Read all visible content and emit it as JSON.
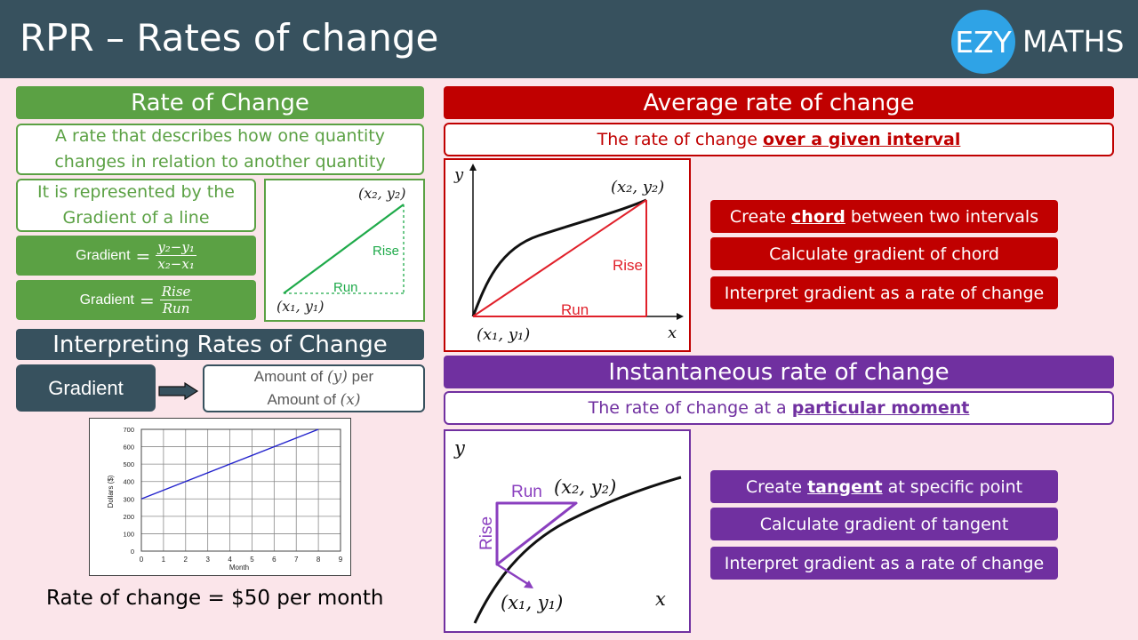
{
  "header": {
    "title": "RPR – Rates of change",
    "logo_left": "EZY",
    "logo_right": "MATHS"
  },
  "rate_of_change": {
    "heading": "Rate of Change",
    "definition_line1": "A rate that describes how one quantity",
    "definition_line2": "changes in relation to another quantity",
    "represented_line1": "It is represented by the",
    "represented_line2": "Gradient of a line",
    "formula_label": "Gradient",
    "formula1_num": "y₂−y₁",
    "formula1_den": "x₂−x₁",
    "formula2_num": "Rise",
    "formula2_den": "Run",
    "graph": {
      "p1": "(x₁, y₁)",
      "p2": "(x₂, y₂)",
      "rise": "Rise",
      "run": "Run"
    }
  },
  "interpreting": {
    "heading": "Interpreting Rates of Change",
    "gradient_label": "Gradient",
    "amount_line1_a": "Amount of ",
    "amount_line1_var": "(y)",
    "amount_line1_b": " per",
    "amount_line2_a": "Amount of ",
    "amount_line2_var": "(x)",
    "rate_label": "Rate of change",
    "rate_value": "$50 per month"
  },
  "chart_data": {
    "type": "line",
    "xlabel": "Month",
    "ylabel": "Dollars ($)",
    "xlim": [
      0,
      9
    ],
    "ylim": [
      0,
      700
    ],
    "x_ticks": [
      "0",
      "1",
      "2",
      "3",
      "4",
      "5",
      "6",
      "7",
      "8",
      "9"
    ],
    "y_ticks": [
      "0",
      "100",
      "200",
      "300",
      "400",
      "500",
      "600",
      "700"
    ],
    "grid": true,
    "series": [
      {
        "x": [
          0,
          8
        ],
        "y": [
          300,
          700
        ],
        "color": "#2222cc"
      }
    ]
  },
  "average": {
    "heading": "Average rate of change",
    "sub_a": "The rate of change ",
    "sub_b": "over a given interval",
    "graph": {
      "y_axis": "y",
      "x_axis": "x",
      "p1": "(x₁, y₁)",
      "p2": "(x₂, y₂)",
      "rise": "Rise",
      "run": "Run"
    },
    "steps": [
      {
        "a": "Create ",
        "b": "chord",
        "c": " between two intervals"
      },
      {
        "a": "Calculate gradient of chord",
        "b": "",
        "c": ""
      },
      {
        "a": "Interpret gradient as a rate of change",
        "b": "",
        "c": ""
      }
    ]
  },
  "instantaneous": {
    "heading": "Instantaneous rate of change",
    "sub_a": "The rate of change at a ",
    "sub_b": "particular moment",
    "graph": {
      "y_axis": "y",
      "x_axis": "x",
      "p1": "(x₁, y₁)",
      "p2": "(x₂, y₂)",
      "rise": "Rise",
      "run": "Run"
    },
    "steps": [
      {
        "a": "Create ",
        "b": "tangent",
        "c": " at specific point"
      },
      {
        "a": "Calculate gradient of tangent",
        "b": "",
        "c": ""
      },
      {
        "a": "Interpret gradient as a rate of change",
        "b": "",
        "c": ""
      }
    ]
  },
  "colors": {
    "header": "#37515e",
    "green": "#5ba144",
    "red": "#c00000",
    "purple": "#7030a0",
    "logo": "#2fa3e6",
    "background": "#fbe5ea"
  }
}
